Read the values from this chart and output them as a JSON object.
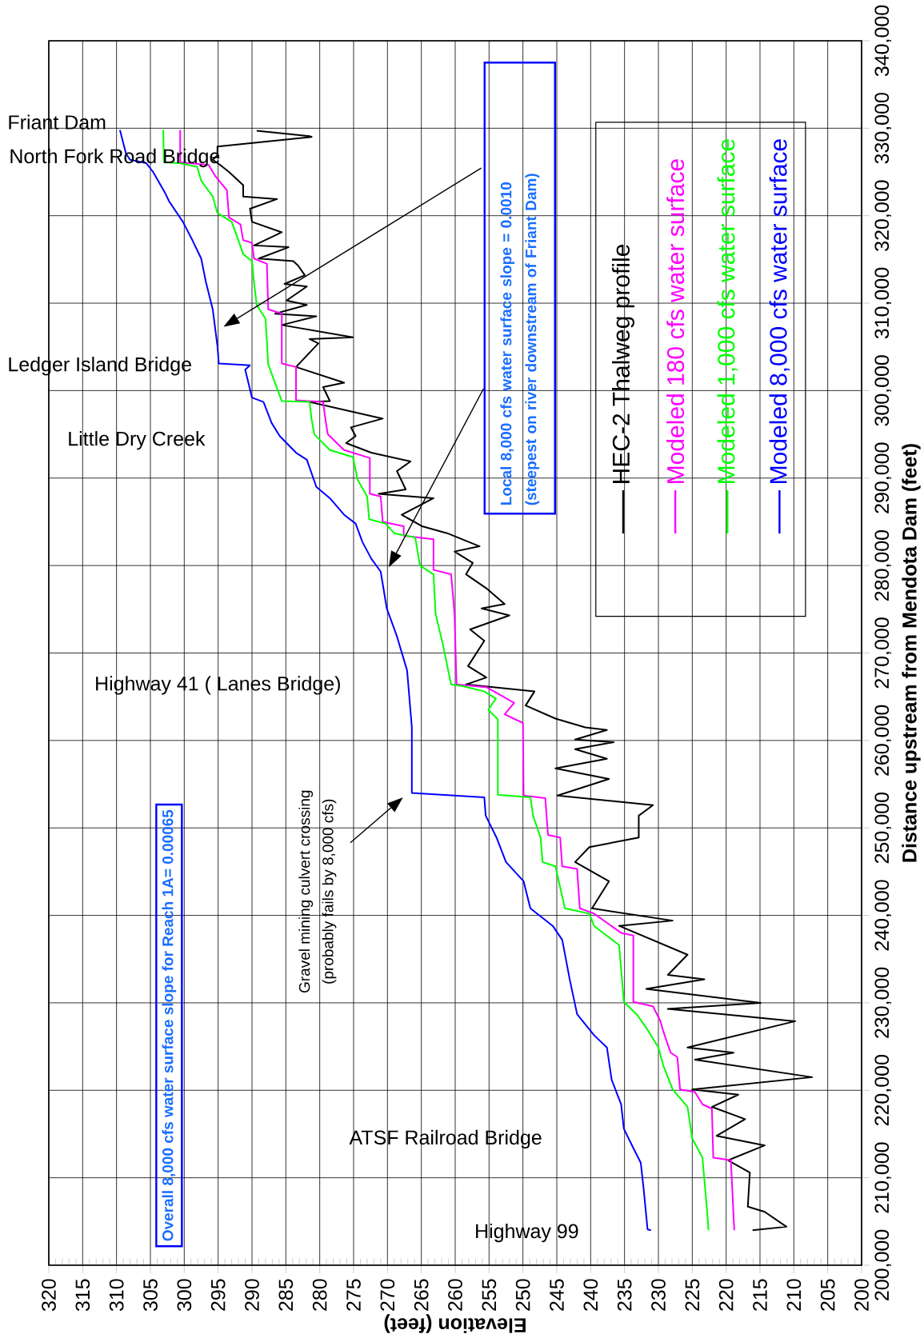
{
  "chart_data": {
    "type": "line",
    "xlabel": "Elevation (feet)",
    "ylabel": "Distance upstream from Mendota Dam (feet)",
    "xlim": [
      320,
      200
    ],
    "ylim": [
      200000,
      340000
    ],
    "xticks": [
      320,
      315,
      310,
      305,
      300,
      295,
      290,
      285,
      280,
      275,
      270,
      265,
      260,
      255,
      250,
      245,
      240,
      235,
      230,
      225,
      220,
      215,
      210,
      205,
      200
    ],
    "yticks": [
      {
        "value": 200000,
        "label": "200,000"
      },
      {
        "value": 210000,
        "label": "210,000"
      },
      {
        "value": 220000,
        "label": "220,000"
      },
      {
        "value": 230000,
        "label": "230,000"
      },
      {
        "value": 240000,
        "label": "240,000"
      },
      {
        "value": 250000,
        "label": "250,000"
      },
      {
        "value": 260000,
        "label": "260,000"
      },
      {
        "value": 270000,
        "label": "270,000"
      },
      {
        "value": 280000,
        "label": "280,000"
      },
      {
        "value": 290000,
        "label": "290,000"
      },
      {
        "value": 300000,
        "label": "300,000"
      },
      {
        "value": 310000,
        "label": "310,000"
      },
      {
        "value": 320000,
        "label": "320,000"
      },
      {
        "value": 330000,
        "label": "330,000"
      },
      {
        "value": 340000,
        "label": "340,000"
      }
    ],
    "grid": true,
    "legend": "top right",
    "series": [
      {
        "name": "HEC-2 Thalweg profile",
        "color": "#000000",
        "values": [
          329700,
          329100,
          329000,
          327900,
          326900,
          326400,
          325800,
          325000,
          323500,
          322200,
          321900,
          320800,
          319300,
          318100,
          316600,
          316400,
          315100,
          314800,
          314300,
          313200,
          312200,
          311900,
          310300,
          309800,
          308800,
          308500,
          307500,
          306100,
          305900,
          305400,
          302700,
          300900,
          300400,
          298800,
          298700,
          296800,
          295800,
          294800,
          294000,
          292900,
          291900,
          290800,
          288700,
          288200,
          287700,
          285800,
          284500,
          283700,
          282200,
          281600,
          280300,
          279000,
          277400,
          275600,
          275100,
          274300,
          272700,
          271400,
          268500,
          267200,
          266400,
          265600,
          264000,
          262500,
          261500,
          261200,
          260100,
          259800,
          259000,
          257900,
          256800,
          255600,
          253700,
          252600,
          251400,
          248900,
          247800,
          246100,
          243900,
          240800,
          239400,
          238800,
          235500,
          233200,
          232700,
          231600,
          230000,
          229300,
          227900,
          224900,
          224300,
          223500,
          221500,
          220100,
          219500,
          218100,
          216700,
          214800,
          213700,
          212000,
          210600,
          206700,
          206100,
          204400,
          204000
        ],
        "x": [
          289.3,
          281.5,
          281.2,
          295.1,
          295.1,
          295.8,
          294.7,
          293.4,
          291.3,
          291.3,
          286.3,
          290.3,
          290.0,
          285.6,
          289.7,
          284.6,
          289.0,
          283.9,
          283.2,
          282.2,
          285.2,
          281.9,
          284.9,
          281.9,
          286.6,
          280.5,
          285.6,
          275.1,
          281.5,
          280.2,
          283.5,
          276.4,
          279.5,
          278.5,
          281.5,
          270.7,
          275.4,
          274.7,
          276.1,
          272.4,
          266.6,
          268.6,
          267.3,
          271.3,
          263.2,
          267.9,
          264.9,
          261.2,
          256.4,
          260.1,
          257.4,
          258.4,
          255.4,
          252.7,
          256.1,
          252.0,
          257.8,
          255.7,
          258.1,
          255.4,
          258.4,
          248.3,
          249.6,
          245.2,
          240.8,
          237.6,
          242.3,
          236.6,
          242.3,
          237.6,
          245.2,
          237.3,
          244.9,
          230.8,
          232.9,
          232.9,
          240.2,
          242.3,
          237.3,
          239.8,
          227.9,
          235.8,
          225.7,
          228.6,
          223.2,
          231.8,
          214.9,
          228.6,
          209.8,
          225.7,
          218.9,
          224.6,
          207.3,
          225.0,
          218.2,
          222.1,
          217.2,
          221.4,
          214.3,
          219.7,
          216.5,
          216.8,
          214.3,
          211.1,
          216.1
        ]
      },
      {
        "name": "Modeled 180 cfs water surface",
        "color": "#ff00ff",
        "values": [
          329800,
          326100,
          325800,
          324500,
          322900,
          319800,
          319000,
          317200,
          316900,
          315100,
          314500,
          309300,
          308800,
          303100,
          302700,
          298900,
          298700,
          296400,
          295000,
          293200,
          292300,
          288200,
          287900,
          285000,
          284500,
          283400,
          283000,
          279500,
          279000,
          274500,
          266400,
          266100,
          264300,
          263000,
          262000,
          253700,
          253400,
          249200,
          248900,
          245600,
          245300,
          240800,
          240200,
          238000,
          237700,
          230100,
          229600,
          227900,
          226800,
          224300,
          223800,
          220100,
          219800,
          218400,
          217900,
          212300,
          212000,
          204000
        ],
        "x": [
          300.6,
          300.6,
          296.4,
          295.4,
          293.7,
          293.4,
          291.7,
          291.3,
          290.0,
          289.7,
          287.8,
          287.6,
          285.6,
          285.6,
          283.5,
          283.5,
          279.5,
          279.1,
          278.8,
          276.4,
          272.6,
          272.6,
          271.0,
          270.7,
          267.6,
          267.6,
          263.2,
          263.2,
          260.6,
          260.1,
          259.8,
          255.4,
          251.3,
          252.7,
          250.0,
          249.9,
          246.7,
          246.3,
          244.5,
          244.2,
          242.0,
          241.6,
          239.5,
          235.5,
          233.7,
          233.7,
          230.8,
          229.7,
          229.3,
          228.2,
          227.2,
          226.8,
          224.6,
          223.5,
          222.1,
          221.9,
          219.3,
          218.8
        ]
      },
      {
        "name": "Modeled 1,000 cfs water surface",
        "color": "#00ff00",
        "values": [
          329800,
          326100,
          326000,
          325600,
          324000,
          322200,
          320300,
          319300,
          317200,
          315600,
          314800,
          312400,
          309800,
          308200,
          303000,
          298800,
          298700,
          296700,
          295000,
          293200,
          292400,
          289800,
          287900,
          285300,
          284800,
          283700,
          283200,
          280000,
          279000,
          274500,
          270900,
          266400,
          266200,
          265600,
          264800,
          263500,
          262400,
          253800,
          253500,
          251400,
          248900,
          246100,
          245600,
          240800,
          240200,
          238800,
          236600,
          230100,
          228600,
          226800,
          224900,
          222900,
          220100,
          218100,
          214500,
          212300,
          206100,
          204000
        ],
        "x": [
          303.1,
          303.0,
          300.8,
          298.1,
          297.5,
          295.8,
          295.1,
          293.0,
          292.0,
          291.3,
          290.0,
          289.7,
          289.3,
          288.0,
          287.6,
          285.6,
          281.5,
          281.2,
          280.8,
          278.5,
          275.1,
          274.4,
          273.0,
          272.7,
          270.3,
          269.0,
          265.9,
          265.2,
          263.2,
          262.9,
          261.8,
          260.6,
          258.8,
          255.7,
          254.0,
          255.1,
          253.7,
          253.7,
          248.9,
          248.5,
          247.4,
          247.1,
          245.2,
          243.8,
          240.2,
          239.5,
          235.8,
          235.1,
          233.1,
          231.5,
          230.0,
          229.3,
          227.9,
          225.7,
          225.0,
          223.5,
          222.8,
          222.6
        ]
      },
      {
        "name": "Modeled 8,000 cfs water surface",
        "color": "#0000ff",
        "values": [
          329800,
          327100,
          326400,
          326000,
          325000,
          322700,
          321600,
          319300,
          317200,
          315100,
          312400,
          309300,
          305100,
          303100,
          302900,
          302400,
          299200,
          298700,
          296300,
          294800,
          292900,
          292100,
          289000,
          287700,
          285800,
          284800,
          282700,
          280800,
          279300,
          275100,
          271900,
          268000,
          261500,
          254000,
          253500,
          251400,
          248900,
          246100,
          243900,
          240800,
          238800,
          237200,
          232700,
          228700,
          226300,
          224900,
          221200,
          218400,
          215600,
          213400,
          211700,
          208900,
          204100,
          204000
        ],
        "x": [
          309.5,
          308.6,
          308.0,
          305.6,
          304.6,
          302.9,
          302.2,
          300.2,
          298.8,
          297.5,
          296.8,
          295.8,
          295.1,
          294.9,
          290.3,
          291.0,
          290.0,
          288.3,
          287.1,
          285.9,
          283.5,
          281.9,
          280.5,
          278.5,
          276.4,
          274.7,
          273.7,
          272.4,
          271.0,
          270.1,
          268.6,
          267.1,
          266.4,
          266.4,
          255.7,
          255.5,
          253.9,
          252.5,
          249.9,
          248.9,
          245.6,
          244.2,
          243.1,
          242.0,
          239.5,
          237.6,
          236.9,
          235.5,
          235.1,
          233.7,
          232.6,
          232.2,
          231.6,
          231.1
        ]
      }
    ],
    "annotations": [
      "Friant Dam",
      "North Fork Road Bridge",
      "Ledger Island Bridge",
      "Little Dry Creek",
      "Highway 41 ( Lanes Bridge)",
      "ATSF Railroad Bridge",
      "Highway 99",
      "Gravel mining culvert crossing",
      "(probably fails by 8,000 cfs)",
      "Local 8,000 cfs water surface slope = 0.0010",
      "(steepest on river downstream of Friant Dam)",
      "Overall 8,000 cfs water surface slope for Reach 1A= 0.00065"
    ]
  }
}
